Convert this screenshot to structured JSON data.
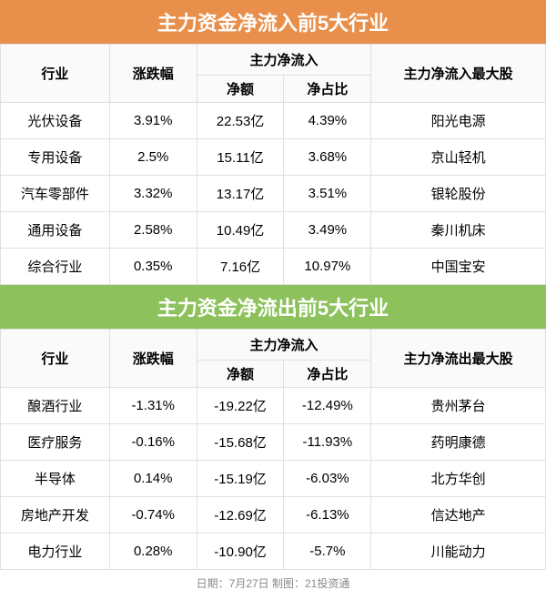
{
  "inflow": {
    "title": "主力资金净流入前5大行业",
    "title_bg": "#e98f4c",
    "title_fontsize": 22,
    "headers": {
      "industry": "行业",
      "change": "涨跌幅",
      "main_group": "主力净流入",
      "amount": "净额",
      "ratio": "净占比",
      "top_stock": "主力净流入最大股"
    },
    "col_widths_pct": [
      20,
      16,
      16,
      16,
      32
    ],
    "rows": [
      {
        "industry": "光伏设备",
        "change": "3.91%",
        "amount": "22.53亿",
        "ratio": "4.39%",
        "top_stock": "阳光电源"
      },
      {
        "industry": "专用设备",
        "change": "2.5%",
        "amount": "15.11亿",
        "ratio": "3.68%",
        "top_stock": "京山轻机"
      },
      {
        "industry": "汽车零部件",
        "change": "3.32%",
        "amount": "13.17亿",
        "ratio": "3.51%",
        "top_stock": "银轮股份"
      },
      {
        "industry": "通用设备",
        "change": "2.58%",
        "amount": "10.49亿",
        "ratio": "3.49%",
        "top_stock": "秦川机床"
      },
      {
        "industry": "综合行业",
        "change": "0.35%",
        "amount": "7.16亿",
        "ratio": "10.97%",
        "top_stock": "中国宝安"
      }
    ]
  },
  "outflow": {
    "title": "主力资金净流出前5大行业",
    "title_bg": "#8cc15b",
    "title_fontsize": 22,
    "headers": {
      "industry": "行业",
      "change": "涨跌幅",
      "main_group": "主力净流入",
      "amount": "净额",
      "ratio": "净占比",
      "top_stock": "主力净流出最大股"
    },
    "col_widths_pct": [
      20,
      16,
      16,
      16,
      32
    ],
    "rows": [
      {
        "industry": "酿酒行业",
        "change": "-1.31%",
        "amount": "-19.22亿",
        "ratio": "-12.49%",
        "top_stock": "贵州茅台"
      },
      {
        "industry": "医疗服务",
        "change": "-0.16%",
        "amount": "-15.68亿",
        "ratio": "-11.93%",
        "top_stock": "药明康德"
      },
      {
        "industry": "半导体",
        "change": "0.14%",
        "amount": "-15.19亿",
        "ratio": "-6.03%",
        "top_stock": "北方华创"
      },
      {
        "industry": "房地产开发",
        "change": "-0.74%",
        "amount": "-12.69亿",
        "ratio": "-6.13%",
        "top_stock": "信达地产"
      },
      {
        "industry": "电力行业",
        "change": "0.28%",
        "amount": "-10.90亿",
        "ratio": "-5.7%",
        "top_stock": "川能动力"
      }
    ]
  },
  "footer": "日期：7月27日 制图：21投资通",
  "styles": {
    "border_color": "#e0e0e0",
    "header_bg": "#fafafa",
    "text_color": "#222222",
    "cell_fontsize": 15,
    "footer_color": "#888888",
    "footer_fontsize": 12
  }
}
